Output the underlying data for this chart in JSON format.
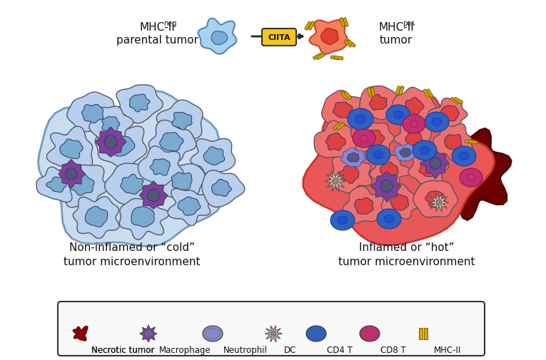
{
  "bg_color": "#ffffff",
  "title_top_left": "MHC-II",
  "title_top_left_sup": "neg",
  "title_top_left2": "parental tumor",
  "title_top_right": "MHC-II",
  "title_top_right_sup": "pos",
  "title_top_right2": "tumor",
  "ciita_label": "CIITA",
  "ciita_color": "#f5c518",
  "ciita_border": "#333333",
  "arrow_color": "#222222",
  "left_label1": "Non-inflamed or “cold”",
  "left_label2": "tumor microenvironment",
  "right_label1": "Inflamed or “hot”",
  "right_label2": "tumor microenvironment",
  "cold_bg_color": "#a8c8e8",
  "cold_cell_colors": [
    "#b8d4f0",
    "#c0d8f4",
    "#a8c4e4",
    "#b0ccec"
  ],
  "cold_inner_color": "#7aa8d0",
  "hot_bg_color": "#e85050",
  "hot_cell_color": "#f08080",
  "necrotic_color": "#8b0000",
  "macrophage_color": "#7b3f9e",
  "neutrophil_color": "#8888cc",
  "dc_color": "#f4c0b0",
  "cd4_color": "#3060c0",
  "cd8_color": "#c03070",
  "mhc2_color": "#d4a800",
  "legend_labels": [
    "Necrotic tumor",
    "Macrophage",
    "Neutrophil",
    "DC",
    "CD4 T",
    "CD8 T",
    "MHC-II"
  ],
  "legend_colors": [
    "#8b0000",
    "#7b3f9e",
    "#8888cc",
    "#f4c0b0",
    "#3060c0",
    "#c03070",
    "#d4a800"
  ],
  "parental_cell_color": "#a8d0f0",
  "parental_inner_color": "#7aaad8",
  "mhcpos_cell_color": "#f08060",
  "mhcpos_inner_color": "#e04030"
}
